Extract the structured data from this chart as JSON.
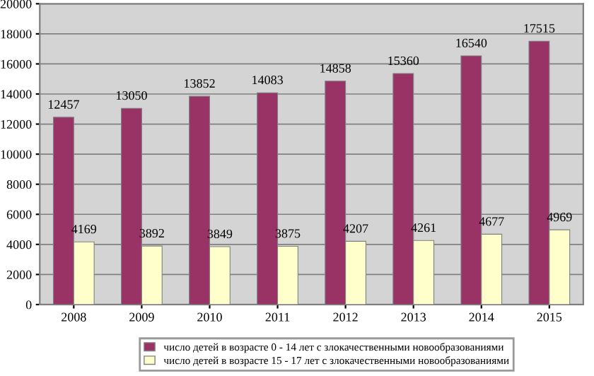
{
  "chart_data": {
    "type": "bar",
    "categories": [
      "2008",
      "2009",
      "2010",
      "2011",
      "2012",
      "2013",
      "2014",
      "2015"
    ],
    "series": [
      {
        "name": "число детей в возрасте 0 - 14 лет с злокачественными новообразованиями",
        "color": "#993366",
        "values": [
          12457,
          13050,
          13852,
          14083,
          14858,
          15360,
          16540,
          17515
        ]
      },
      {
        "name": "число детей в возрасте 15 - 17 лет с злокачественными новообразованиями",
        "color": "#ffffcc",
        "values": [
          4169,
          3892,
          3849,
          3875,
          4207,
          4261,
          4677,
          4969
        ]
      }
    ],
    "ylim": [
      0,
      20000
    ],
    "yticks": [
      0,
      2000,
      4000,
      6000,
      8000,
      10000,
      12000,
      14000,
      16000,
      18000,
      20000
    ],
    "grid": "y",
    "legend": "bottom",
    "data_labels": true
  }
}
